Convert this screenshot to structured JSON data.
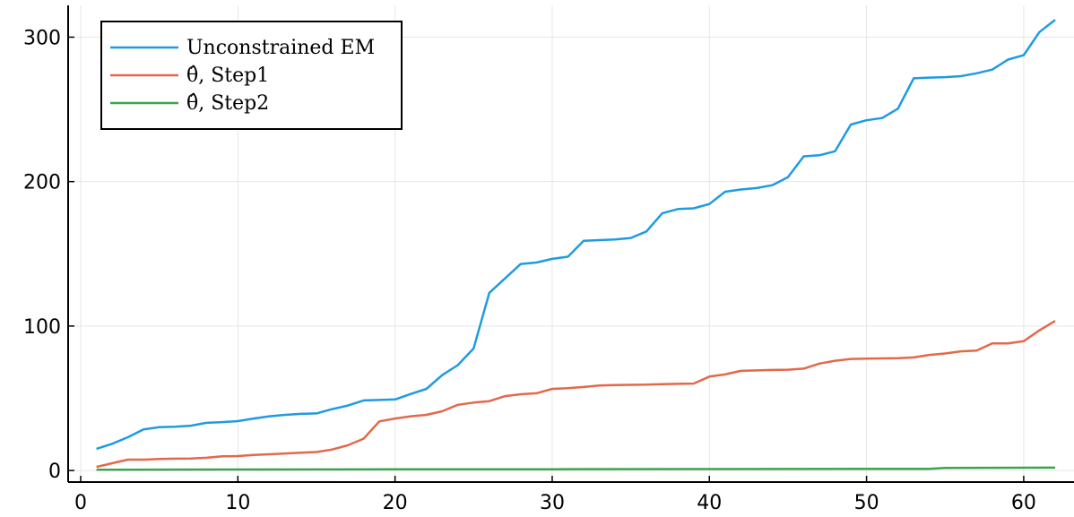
{
  "chart_data": {
    "type": "line",
    "title": "",
    "xlabel": "",
    "ylabel": "",
    "xlim": [
      -0.8,
      63.2
    ],
    "ylim": [
      -8,
      322
    ],
    "x_ticks": [
      0,
      10,
      20,
      30,
      40,
      50,
      60
    ],
    "y_ticks": [
      0,
      100,
      200,
      300
    ],
    "grid": true,
    "legend_position": "top-left",
    "series": [
      {
        "name": "Unconstrained EM",
        "color": "#1f9be0",
        "x": [
          1,
          2,
          3,
          4,
          5,
          6,
          7,
          8,
          9,
          10,
          11,
          12,
          13,
          14,
          15,
          16,
          17,
          18,
          19,
          20,
          21,
          22,
          23,
          24,
          25,
          26,
          27,
          28,
          29,
          30,
          31,
          32,
          33,
          34,
          35,
          36,
          37,
          38,
          39,
          40,
          41,
          42,
          43,
          44,
          45,
          46,
          47,
          48,
          49,
          50,
          51,
          52,
          53,
          54,
          55,
          56,
          57,
          58,
          59,
          60,
          61,
          62
        ],
        "values": [
          15,
          18.5,
          23,
          28.5,
          30,
          30.3,
          31,
          33,
          33.5,
          34.2,
          36,
          37.5,
          38.5,
          39.2,
          39.5,
          42.5,
          45,
          48.5,
          48.8,
          49.2,
          53,
          56.5,
          66,
          73,
          84.5,
          123,
          133,
          143,
          144,
          146.5,
          148,
          159,
          159.5,
          160,
          161,
          165.5,
          178,
          181,
          181.5,
          184.5,
          193,
          194.5,
          195.5,
          197.5,
          203,
          217.5,
          218.2,
          221,
          239.5,
          242.5,
          244,
          250.5,
          271.5,
          272,
          272.3,
          273,
          275,
          277.5,
          284.5,
          287.5,
          303.5,
          312
        ]
      },
      {
        "name": "θ̂, Step1",
        "color": "#e2694a",
        "x": [
          1,
          2,
          3,
          4,
          5,
          6,
          7,
          8,
          9,
          10,
          11,
          12,
          13,
          14,
          15,
          16,
          17,
          18,
          19,
          20,
          21,
          22,
          23,
          24,
          25,
          26,
          27,
          28,
          29,
          30,
          31,
          32,
          33,
          34,
          35,
          36,
          37,
          38,
          39,
          40,
          41,
          42,
          43,
          44,
          45,
          46,
          47,
          48,
          49,
          50,
          51,
          52,
          53,
          54,
          55,
          56,
          57,
          58,
          59,
          60,
          61,
          62
        ],
        "values": [
          2.5,
          5,
          7.5,
          7.5,
          8,
          8.2,
          8.3,
          8.8,
          9.8,
          10,
          10.8,
          11.2,
          11.8,
          12.3,
          12.8,
          14.5,
          17.5,
          22,
          34,
          36,
          37.5,
          38.5,
          41,
          45.5,
          47,
          48,
          51.5,
          52.8,
          53.5,
          56.5,
          57,
          57.8,
          58.8,
          59.2,
          59.3,
          59.4,
          59.8,
          60,
          60.2,
          65,
          66.5,
          69,
          69.3,
          69.6,
          69.8,
          70.5,
          74,
          76,
          77.2,
          77.5,
          77.6,
          77.8,
          78.3,
          80,
          81,
          82.5,
          83,
          88,
          88,
          89.5,
          97,
          103.5
        ]
      },
      {
        "name": "θ̂, Step2",
        "color": "#3ca44e",
        "x": [
          1,
          10,
          20,
          30,
          40,
          50,
          54,
          55,
          62
        ],
        "values": [
          0.5,
          0.7,
          0.8,
          0.9,
          1.0,
          1.1,
          1.2,
          1.8,
          2.0
        ]
      }
    ]
  }
}
